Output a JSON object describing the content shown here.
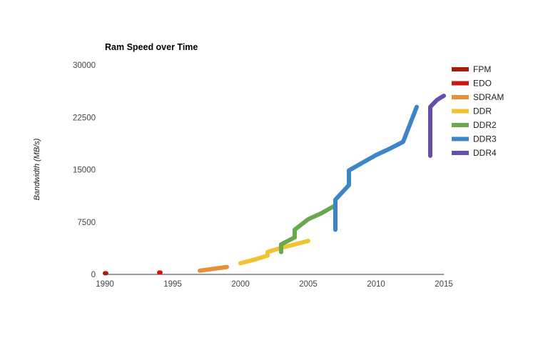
{
  "chart_data": {
    "type": "line",
    "title": "Ram Speed over Time",
    "xlabel": "",
    "ylabel": "Bandwidth (MB/s)",
    "xlim": [
      1990,
      2015
    ],
    "ylim": [
      0,
      30000
    ],
    "x_ticks": [
      1990,
      1995,
      2000,
      2005,
      2010,
      2015
    ],
    "y_ticks": [
      0,
      7500,
      15000,
      22500,
      30000
    ],
    "legend_position": "right",
    "grid": false,
    "series": [
      {
        "name": "FPM",
        "color": "#a31e0b",
        "points": [
          [
            1990.0,
            160
          ],
          [
            1990.1,
            160
          ]
        ]
      },
      {
        "name": "EDO",
        "color": "#d0140f",
        "points": [
          [
            1994.0,
            267
          ],
          [
            1994.1,
            267
          ]
        ]
      },
      {
        "name": "SDRAM",
        "color": "#e69138",
        "points": [
          [
            1997.0,
            533
          ],
          [
            1998.0,
            800
          ],
          [
            1999.0,
            1067
          ]
        ]
      },
      {
        "name": "DDR",
        "color": "#f1c232",
        "points": [
          [
            2000.0,
            1600
          ],
          [
            2001.0,
            2100
          ],
          [
            2002.0,
            2700
          ],
          [
            2002.0,
            3200
          ],
          [
            2003.0,
            3800
          ],
          [
            2004.0,
            4300
          ],
          [
            2005.0,
            4800
          ]
        ]
      },
      {
        "name": "DDR2",
        "color": "#6aa84f",
        "points": [
          [
            2003.0,
            3200
          ],
          [
            2003.0,
            4300
          ],
          [
            2004.0,
            5300
          ],
          [
            2004.0,
            6400
          ],
          [
            2005.0,
            7900
          ],
          [
            2006.0,
            8800
          ],
          [
            2007.0,
            9900
          ]
        ]
      },
      {
        "name": "DDR3",
        "color": "#3d85c6",
        "points": [
          [
            2007.0,
            6400
          ],
          [
            2007.0,
            10700
          ],
          [
            2008.0,
            12800
          ],
          [
            2008.0,
            14900
          ],
          [
            2009.0,
            16000
          ],
          [
            2010.0,
            17100
          ],
          [
            2011.0,
            18000
          ],
          [
            2012.0,
            19000
          ],
          [
            2012.5,
            21500
          ],
          [
            2013.0,
            24000
          ]
        ]
      },
      {
        "name": "DDR4",
        "color": "#674ea7",
        "points": [
          [
            2014.0,
            17000
          ],
          [
            2014.0,
            24000
          ],
          [
            2014.5,
            25000
          ],
          [
            2015.0,
            25600
          ]
        ]
      }
    ]
  }
}
